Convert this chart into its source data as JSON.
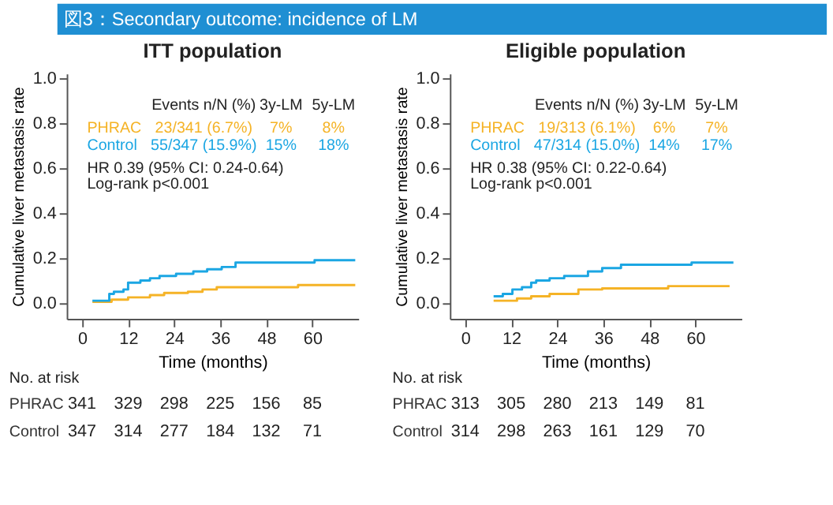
{
  "chart_data": [
    {
      "type": "other",
      "title": "図3：Secondary outcome: incidence of LM"
    },
    {
      "type": "step",
      "title": "ITT population",
      "xlabel": "Time (months)",
      "ylabel": "Cumulative liver metastasis rate",
      "xlim": [
        -4,
        72
      ],
      "ylim": [
        -0.07,
        1.02
      ],
      "xticks": [
        0,
        12,
        24,
        36,
        48,
        60
      ],
      "yticks": [
        {
          "value": 0,
          "label": "0.0"
        },
        {
          "value": 0.2,
          "label": "0.2"
        },
        {
          "value": 0.4,
          "label": "0.4"
        },
        {
          "value": 0.6,
          "label": "0.6"
        },
        {
          "value": 0.8,
          "label": "0.8"
        },
        {
          "value": 1,
          "label": "1.0"
        }
      ],
      "series": [
        {
          "name": "PHRAC",
          "color": "#f5b326",
          "x": [
            2.7,
            7.7,
            12,
            17.7,
            21.4,
            27.6,
            31.4,
            35.1,
            56.3,
            71.2
          ],
          "values": [
            0.005,
            0.015,
            0.025,
            0.035,
            0.045,
            0.05,
            0.06,
            0.07,
            0.08,
            0.08
          ]
        },
        {
          "name": "Control",
          "color": "#1ba6e3",
          "x": [
            2.7,
            7.1,
            8.3,
            10.8,
            12,
            15.2,
            17.7,
            20.2,
            24.5,
            29,
            32.6,
            36.4,
            40,
            60.6,
            71.2
          ],
          "values": [
            0.01,
            0.04,
            0.05,
            0.06,
            0.09,
            0.1,
            0.11,
            0.12,
            0.13,
            0.14,
            0.15,
            0.16,
            0.18,
            0.19,
            0.19
          ]
        }
      ],
      "annotations": [
        "Events n/N (%)",
        "3y-LM",
        "5y-LM",
        "23/341 (6.7%)",
        "7%",
        "8%",
        "55/347 (15.9%)",
        "15%",
        "18%",
        "HR 0.39 (95% CI: 0.24-0.64)",
        "Log-rank p<0.001",
        "No. at risk",
        "PHRAC",
        "341",
        "329",
        "298",
        "225",
        "156",
        "85",
        "Control",
        "347",
        "314",
        "277",
        "184",
        "132",
        "71"
      ]
    },
    {
      "type": "step",
      "title": "Eligible population",
      "xlabel": "Time (months)",
      "ylabel": "Cumulative liver metastasis rate",
      "xlim": [
        -4,
        72
      ],
      "ylim": [
        -0.07,
        1.02
      ],
      "xticks": [
        0,
        12,
        24,
        36,
        48,
        60
      ],
      "yticks": [
        {
          "value": 0,
          "label": "0.0"
        },
        {
          "value": 0.2,
          "label": "0.2"
        },
        {
          "value": 0.4,
          "label": "0.4"
        },
        {
          "value": 0.6,
          "label": "0.6"
        },
        {
          "value": 0.8,
          "label": "0.8"
        },
        {
          "value": 1,
          "label": "1.0"
        }
      ],
      "series": [
        {
          "name": "PHRAC",
          "color": "#f5b326",
          "x": [
            7.4,
            13.5,
            17.2,
            22,
            29.5,
            35.7,
            52.9,
            68.9
          ],
          "values": [
            0.01,
            0.02,
            0.03,
            0.04,
            0.06,
            0.065,
            0.075,
            0.075
          ]
        },
        {
          "name": "Control",
          "color": "#1ba6e3",
          "x": [
            7.4,
            9.8,
            12.3,
            14.8,
            17.2,
            18.5,
            22,
            25.8,
            32,
            35.7,
            40.6,
            59,
            69.9
          ],
          "values": [
            0.03,
            0.04,
            0.06,
            0.07,
            0.09,
            0.1,
            0.11,
            0.12,
            0.14,
            0.155,
            0.17,
            0.18,
            0.18
          ]
        }
      ],
      "annotations": [
        "Events n/N (%)",
        "3y-LM",
        "5y-LM",
        "19/313 (6.1%)",
        "6%",
        "7%",
        "47/314 (15.0%)",
        "14%",
        "17%",
        "HR 0.38 (95% CI: 0.22-0.64)",
        "Log-rank p<0.001",
        "No. at risk",
        "PHRAC",
        "313",
        "305",
        "280",
        "213",
        "149",
        "81",
        "Control",
        "314",
        "298",
        "263",
        "161",
        "129",
        "70"
      ]
    }
  ]
}
